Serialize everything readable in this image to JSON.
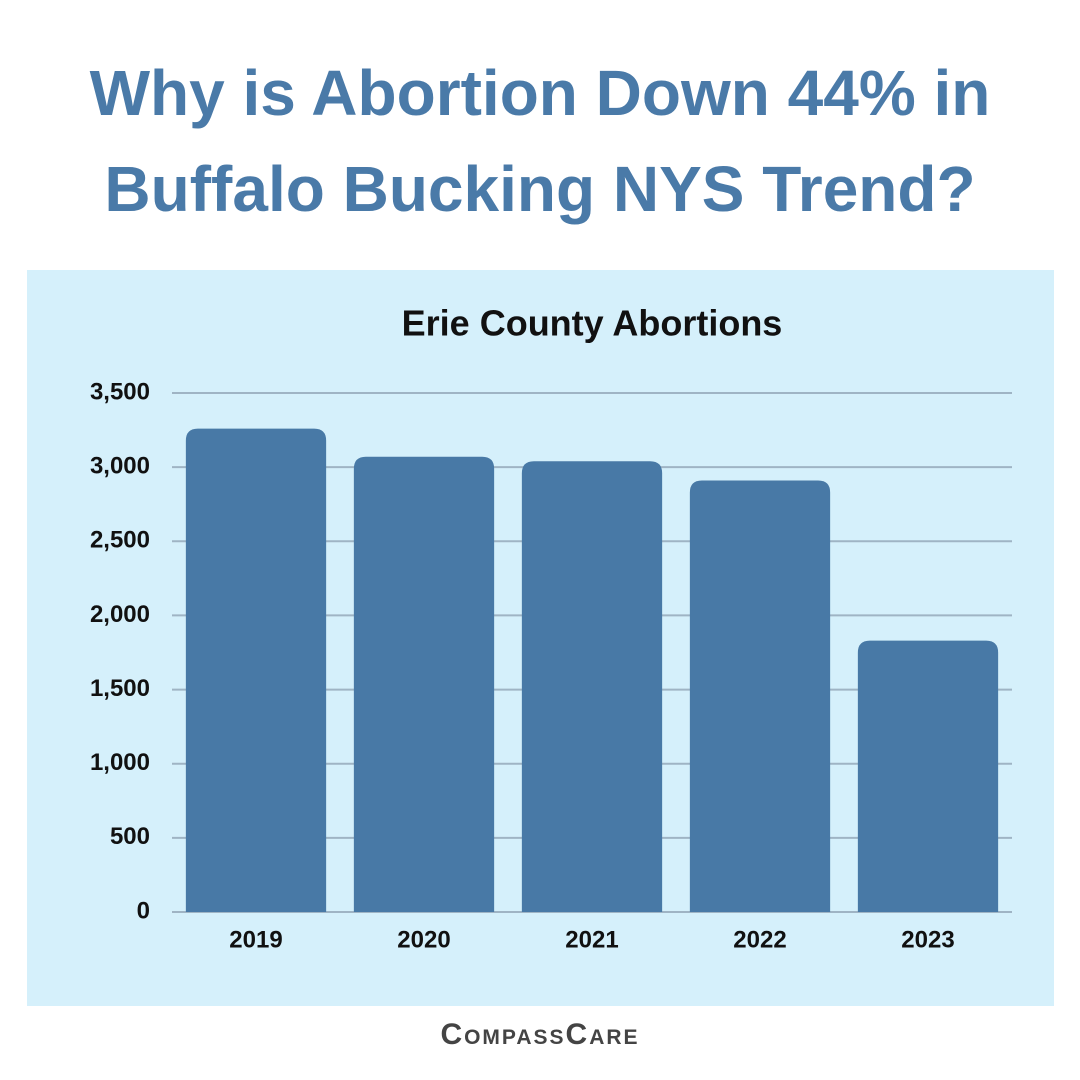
{
  "chart_data": {
    "type": "bar",
    "title": "Why is Abortion Down 44% in Buffalo Bucking NYS Trend?",
    "subtitle": "Erie County Abortions",
    "categories": [
      "2019",
      "2020",
      "2021",
      "2022",
      "2023"
    ],
    "values": [
      3260,
      3070,
      3040,
      2910,
      1830
    ],
    "color": "#4879a6",
    "ylim": [
      0,
      3500
    ],
    "yticks": [
      0,
      500,
      {
        "value": 1000,
        "label": "1,000"
      },
      {
        "value": 1500,
        "label": "1,500"
      },
      {
        "value": 2000,
        "label": "2,000"
      },
      {
        "value": 2500,
        "label": "2,500"
      },
      {
        "value": 3000,
        "label": "3,000"
      },
      {
        "value": 3500,
        "label": "3,500"
      }
    ],
    "grid": true
  },
  "footer": {
    "logo": "CompassCare"
  }
}
